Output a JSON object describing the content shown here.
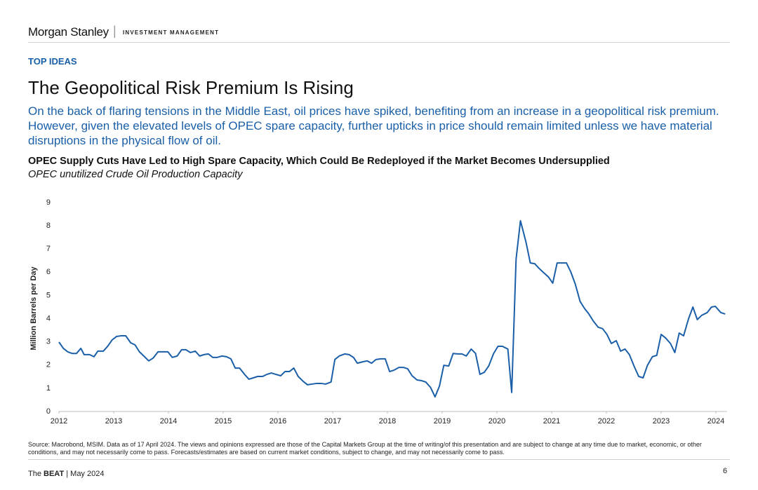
{
  "header": {
    "logo": "Morgan Stanley",
    "division": "INVESTMENT MANAGEMENT"
  },
  "section_label": "TOP IDEAS",
  "title": "The Geopolitical Risk Premium Is Rising",
  "subtitle": "On the back of flaring tensions in the Middle East, oil prices have spiked, benefiting from an increase in a geopolitical risk premium. However, given the elevated levels of OPEC spare capacity, further upticks in price should remain limited unless we have material disruptions in the physical flow of oil.",
  "chart_data": {
    "type": "line",
    "title": "OPEC Supply Cuts Have Led to High Spare Capacity, Which Could Be Redeployed if the Market Becomes Undersupplied",
    "subtitle": "OPEC unutilized Crude Oil Production Capacity",
    "y_label": "Million Barrels per Day",
    "color": "#1a5fa8",
    "x": [
      2012.0,
      2012.08,
      2012.16,
      2012.24,
      2012.32,
      2012.4,
      2012.46,
      2012.56,
      2012.64,
      2012.71,
      2012.81,
      2012.89,
      2012.97,
      2013.05,
      2013.13,
      2013.22,
      2013.31,
      2013.39,
      2013.47,
      2013.55,
      2013.64,
      2013.72,
      2013.81,
      2013.91,
      2013.99,
      2014.07,
      2014.16,
      2014.24,
      2014.32,
      2014.4,
      2014.49,
      2014.57,
      2014.65,
      2014.73,
      2014.81,
      2014.89,
      2014.98,
      2015.06,
      2015.14,
      2015.22,
      2015.3,
      2015.39,
      2015.47,
      2015.55,
      2015.63,
      2015.72,
      2015.8,
      2015.88,
      2015.96,
      2016.05,
      2016.13,
      2016.21,
      2016.29,
      2016.37,
      2016.46,
      2016.54,
      2016.62,
      2016.71,
      2016.79,
      2016.87,
      2016.97,
      2017.04,
      2017.12,
      2017.22,
      2017.3,
      2017.38,
      2017.45,
      2017.55,
      2017.63,
      2017.71,
      2017.79,
      2017.88,
      2017.96,
      2018.04,
      2018.12,
      2018.21,
      2018.29,
      2018.37,
      2018.45,
      2018.54,
      2018.62,
      2018.7,
      2018.79,
      2018.87,
      2018.95,
      2019.03,
      2019.12,
      2019.2,
      2019.28,
      2019.36,
      2019.44,
      2019.53,
      2019.61,
      2019.69,
      2019.77,
      2019.85,
      2019.94,
      2020.02,
      2020.1,
      2020.2,
      2020.27,
      2020.35,
      2020.43,
      2020.53,
      2020.61,
      2020.69,
      2020.76,
      2020.84,
      2020.94,
      2021.02,
      2021.1,
      2021.19,
      2021.27,
      2021.35,
      2021.43,
      2021.52,
      2021.6,
      2021.68,
      2021.76,
      2021.85,
      2021.93,
      2022.01,
      2022.09,
      2022.18,
      2022.26,
      2022.34,
      2022.42,
      2022.51,
      2022.59,
      2022.67,
      2022.75,
      2022.84,
      2022.92,
      2023.0,
      2023.08,
      2023.17,
      2023.25,
      2023.33,
      2023.41,
      2023.5,
      2023.58,
      2023.66,
      2023.74,
      2023.84,
      2023.92,
      2023.99,
      2024.09,
      2024.17
    ],
    "values": [
      2.99,
      2.72,
      2.57,
      2.5,
      2.5,
      2.72,
      2.45,
      2.45,
      2.36,
      2.6,
      2.6,
      2.81,
      3.08,
      3.23,
      3.26,
      3.26,
      2.96,
      2.87,
      2.57,
      2.39,
      2.18,
      2.3,
      2.57,
      2.57,
      2.57,
      2.33,
      2.39,
      2.66,
      2.66,
      2.54,
      2.6,
      2.39,
      2.45,
      2.48,
      2.33,
      2.33,
      2.39,
      2.36,
      2.27,
      1.87,
      1.87,
      1.6,
      1.39,
      1.45,
      1.51,
      1.51,
      1.6,
      1.66,
      1.6,
      1.54,
      1.72,
      1.72,
      1.87,
      1.51,
      1.3,
      1.15,
      1.18,
      1.21,
      1.21,
      1.18,
      1.27,
      2.24,
      2.39,
      2.48,
      2.45,
      2.33,
      2.08,
      2.14,
      2.18,
      2.08,
      2.24,
      2.27,
      2.27,
      1.72,
      1.78,
      1.9,
      1.9,
      1.84,
      1.54,
      1.36,
      1.33,
      1.27,
      1.03,
      0.63,
      1.09,
      1.99,
      1.96,
      2.5,
      2.48,
      2.48,
      2.39,
      2.69,
      2.5,
      1.6,
      1.69,
      1.96,
      2.5,
      2.81,
      2.81,
      2.69,
      0.82,
      6.56,
      8.22,
      7.31,
      6.4,
      6.37,
      6.19,
      6.01,
      5.8,
      5.53,
      6.4,
      6.4,
      6.4,
      6.01,
      5.5,
      4.74,
      4.44,
      4.2,
      3.9,
      3.63,
      3.57,
      3.32,
      2.93,
      3.05,
      2.6,
      2.69,
      2.45,
      1.93,
      1.51,
      1.45,
      1.99,
      2.36,
      2.42,
      3.32,
      3.17,
      2.93,
      2.54,
      3.38,
      3.26,
      3.99,
      4.5,
      3.96,
      4.14,
      4.26,
      4.5,
      4.53,
      4.26,
      4.2
    ],
    "xlim": [
      2012,
      2024.2
    ],
    "xticks": [
      2012,
      2013,
      2014,
      2015,
      2016,
      2017,
      2018,
      2019,
      2020,
      2021,
      2022,
      2023,
      2024
    ],
    "ylim": [
      0,
      9
    ],
    "yticks": [
      0,
      1,
      2,
      3,
      4,
      5,
      6,
      7,
      8,
      9
    ],
    "grid": false
  },
  "footer": {
    "source": "Source: Macrobond, MSIM. Data as of 17 April 2024. The views and opinions expressed are those of the Capital Markets Group at the time of writing/of this presentation and are subject to change at any time due to market, economic, or other conditions, and may not necessarily come to pass. Forecasts/estimates are based on current market conditions, subject to change, and may not necessarily come to pass.",
    "publication_prefix": "The",
    "publication": "BEAT",
    "date": "May 2024",
    "page": "6"
  }
}
